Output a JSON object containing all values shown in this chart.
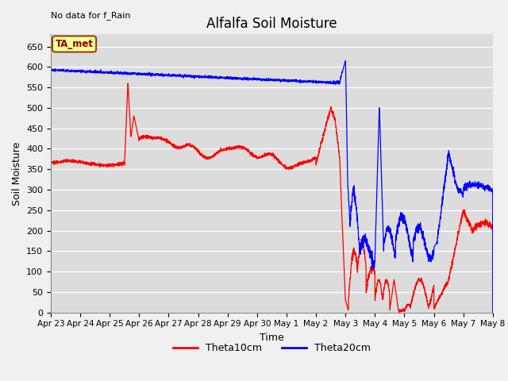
{
  "title": "Alfalfa Soil Moisture",
  "xlabel": "Time",
  "ylabel": "Soil Moisture",
  "annotation_text": "No data for f_Rain",
  "legend_label1": "Theta10cm",
  "legend_label2": "Theta20cm",
  "inset_label": "TA_met",
  "color_red": "#FF0000",
  "color_blue": "#0000FF",
  "bg_color": "#DCDCDC",
  "fig_bg_color": "#F0F0F0",
  "ylim": [
    0,
    680
  ],
  "yticks": [
    0,
    50,
    100,
    150,
    200,
    250,
    300,
    350,
    400,
    450,
    500,
    550,
    600,
    650
  ],
  "xtick_labels": [
    "Apr 23",
    "Apr 24",
    "Apr 25",
    "Apr 26",
    "Apr 27",
    "Apr 28",
    "Apr 29",
    "Apr 30",
    "May 1",
    "May 2",
    "May 3",
    "May 4",
    "May 5",
    "May 6",
    "May 7",
    "May 8"
  ],
  "n_days": 15,
  "title_fontsize": 12,
  "axis_fontsize": 9,
  "tick_fontsize": 8
}
